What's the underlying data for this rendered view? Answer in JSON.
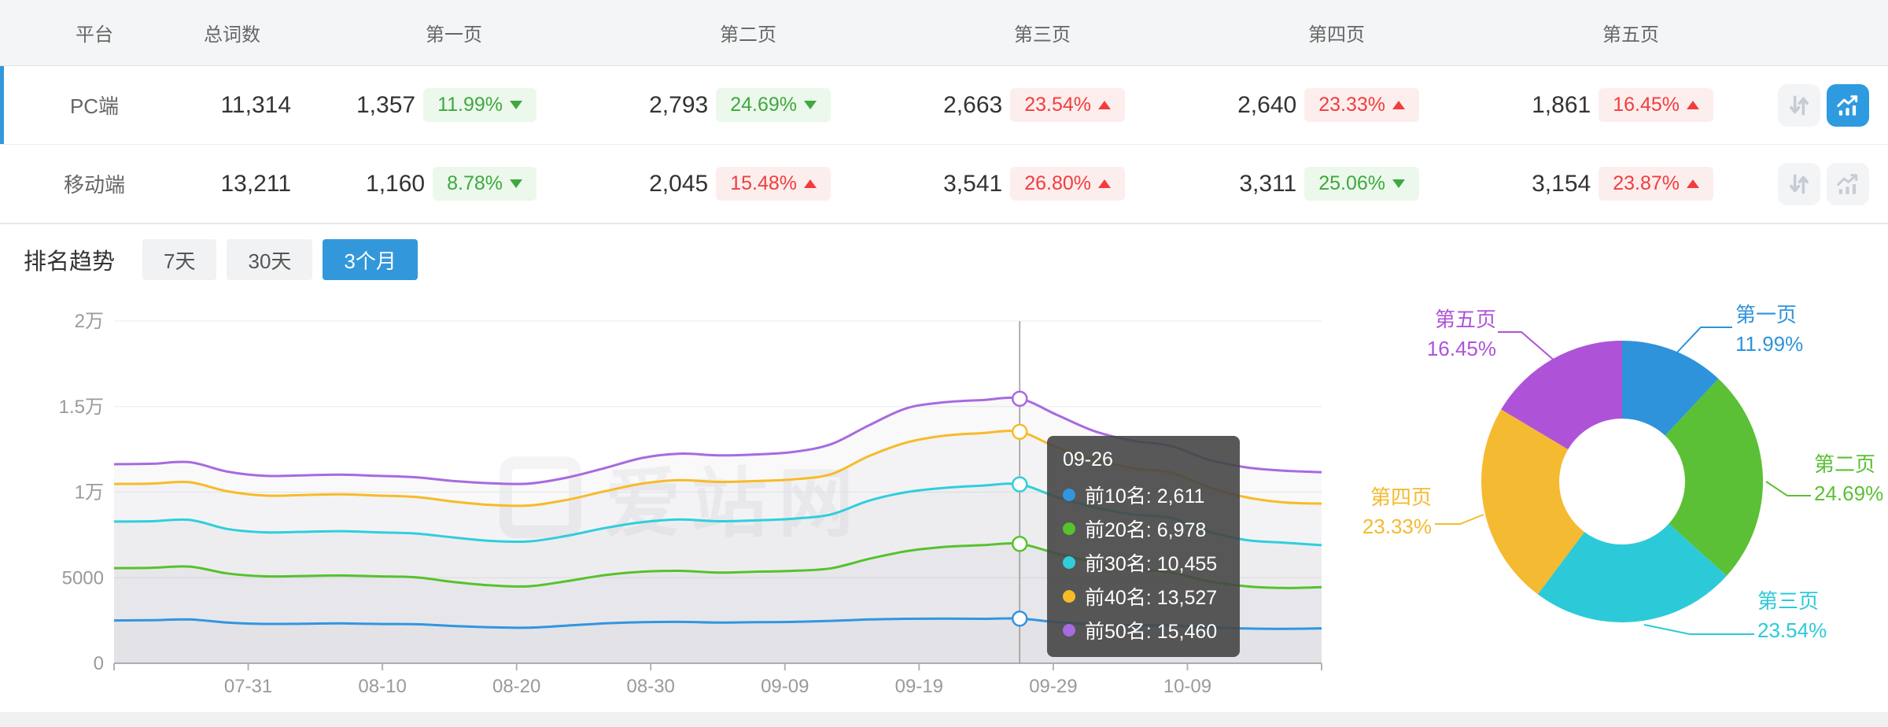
{
  "table": {
    "headers": [
      "平台",
      "总词数",
      "第一页",
      "第二页",
      "第三页",
      "第四页",
      "第五页"
    ],
    "row_action_icons": [
      "updown-arrows-icon",
      "trend-chart-icon"
    ],
    "rows": [
      {
        "platform": "PC端",
        "total": "11,314",
        "selected": true,
        "chart_active": true,
        "pages": [
          {
            "count": "1,357",
            "pct": "11.99%",
            "dir": "down",
            "tone": "green"
          },
          {
            "count": "2,793",
            "pct": "24.69%",
            "dir": "down",
            "tone": "green"
          },
          {
            "count": "2,663",
            "pct": "23.54%",
            "dir": "up",
            "tone": "red"
          },
          {
            "count": "2,640",
            "pct": "23.33%",
            "dir": "up",
            "tone": "red"
          },
          {
            "count": "1,861",
            "pct": "16.45%",
            "dir": "up",
            "tone": "red"
          }
        ]
      },
      {
        "platform": "移动端",
        "total": "13,211",
        "selected": false,
        "chart_active": false,
        "pages": [
          {
            "count": "1,160",
            "pct": "8.78%",
            "dir": "down",
            "tone": "green"
          },
          {
            "count": "2,045",
            "pct": "15.48%",
            "dir": "up",
            "tone": "red"
          },
          {
            "count": "3,541",
            "pct": "26.80%",
            "dir": "up",
            "tone": "red"
          },
          {
            "count": "3,311",
            "pct": "25.06%",
            "dir": "down",
            "tone": "green"
          },
          {
            "count": "3,154",
            "pct": "23.87%",
            "dir": "up",
            "tone": "red"
          }
        ]
      }
    ]
  },
  "trend": {
    "title": "排名趋势",
    "tabs": [
      {
        "label": "7天",
        "active": false
      },
      {
        "label": "30天",
        "active": false
      },
      {
        "label": "3个月",
        "active": true
      }
    ]
  },
  "watermark": "爱站网",
  "tooltip": {
    "date": "09-26",
    "items": [
      {
        "text": "前10名: 2,611",
        "color": "#3295e0"
      },
      {
        "text": "前20名: 6,978",
        "color": "#56c22d"
      },
      {
        "text": "前30名: 10,455",
        "color": "#30cedb"
      },
      {
        "text": "前40名: 13,527",
        "color": "#f7bb27"
      },
      {
        "text": "前50名: 15,460",
        "color": "#a76ae0"
      }
    ]
  },
  "chart_data": [
    {
      "type": "line",
      "title": "排名趋势 (3个月)",
      "x_tick_labels": [
        "07-31",
        "08-10",
        "08-20",
        "08-30",
        "09-09",
        "09-19",
        "09-29",
        "10-09"
      ],
      "y_ticks": [
        {
          "value": 20000,
          "label": "2万"
        },
        {
          "value": 15000,
          "label": "1.5万"
        },
        {
          "value": 10000,
          "label": "1万"
        },
        {
          "value": 5000,
          "label": "5000"
        },
        {
          "value": 0,
          "label": "0"
        }
      ],
      "ylim": [
        0,
        20000
      ],
      "grid": true,
      "hover": {
        "date": "09-26",
        "index": 24
      },
      "series": [
        {
          "name": "前10名",
          "color": "#3295e0",
          "hover_value": 2611,
          "values": [
            2500,
            2520,
            2560,
            2380,
            2300,
            2310,
            2330,
            2300,
            2280,
            2180,
            2100,
            2080,
            2200,
            2330,
            2400,
            2420,
            2380,
            2400,
            2420,
            2480,
            2560,
            2600,
            2605,
            2600,
            2611,
            2400,
            2280,
            2230,
            2210,
            2110,
            2030,
            2010,
            2040
          ]
        },
        {
          "name": "前20名",
          "color": "#56c22d",
          "hover_value": 6978,
          "values": [
            5560,
            5580,
            5650,
            5250,
            5080,
            5100,
            5130,
            5080,
            5020,
            4750,
            4550,
            4500,
            4800,
            5150,
            5350,
            5400,
            5300,
            5350,
            5400,
            5550,
            6100,
            6550,
            6800,
            6900,
            6978,
            6400,
            5900,
            5500,
            5300,
            4800,
            4500,
            4400,
            4450
          ]
        },
        {
          "name": "前30名",
          "color": "#30cedb",
          "hover_value": 10455,
          "values": [
            8280,
            8300,
            8380,
            7850,
            7650,
            7680,
            7720,
            7650,
            7580,
            7350,
            7150,
            7120,
            7450,
            7900,
            8250,
            8400,
            8300,
            8350,
            8450,
            8700,
            9500,
            10000,
            10250,
            10380,
            10455,
            9700,
            9100,
            8700,
            8500,
            7700,
            7200,
            7050,
            6900
          ]
        },
        {
          "name": "前40名",
          "color": "#f7bb27",
          "hover_value": 13527,
          "values": [
            10480,
            10500,
            10580,
            10050,
            9800,
            9830,
            9870,
            9800,
            9720,
            9450,
            9250,
            9220,
            9550,
            10050,
            10500,
            10700,
            10600,
            10650,
            10750,
            11050,
            12100,
            12900,
            13300,
            13450,
            13527,
            12600,
            11900,
            11400,
            11150,
            10300,
            9700,
            9400,
            9330
          ]
        },
        {
          "name": "前50名",
          "color": "#a76ae0",
          "hover_value": 15460,
          "values": [
            11630,
            11660,
            11750,
            11200,
            10950,
            10980,
            11020,
            10950,
            10870,
            10650,
            10520,
            10500,
            10850,
            11400,
            12000,
            12250,
            12150,
            12200,
            12350,
            12800,
            13900,
            14900,
            15250,
            15380,
            15460,
            14500,
            13550,
            13000,
            12700,
            11900,
            11450,
            11250,
            11170
          ]
        }
      ]
    },
    {
      "type": "pie",
      "donut": true,
      "legend_position": "outside-labels",
      "slices": [
        {
          "label": "第一页",
          "value": 11.99,
          "pct_label": "11.99%",
          "color": "#2e93da"
        },
        {
          "label": "第二页",
          "value": 24.69,
          "pct_label": "24.69%",
          "color": "#5bc035"
        },
        {
          "label": "第三页",
          "value": 23.54,
          "pct_label": "23.54%",
          "color": "#2ccad8"
        },
        {
          "label": "第四页",
          "value": 23.33,
          "pct_label": "23.33%",
          "color": "#f4ba31"
        },
        {
          "label": "第五页",
          "value": 16.45,
          "pct_label": "16.45%",
          "color": "#ae53d8"
        }
      ]
    }
  ]
}
